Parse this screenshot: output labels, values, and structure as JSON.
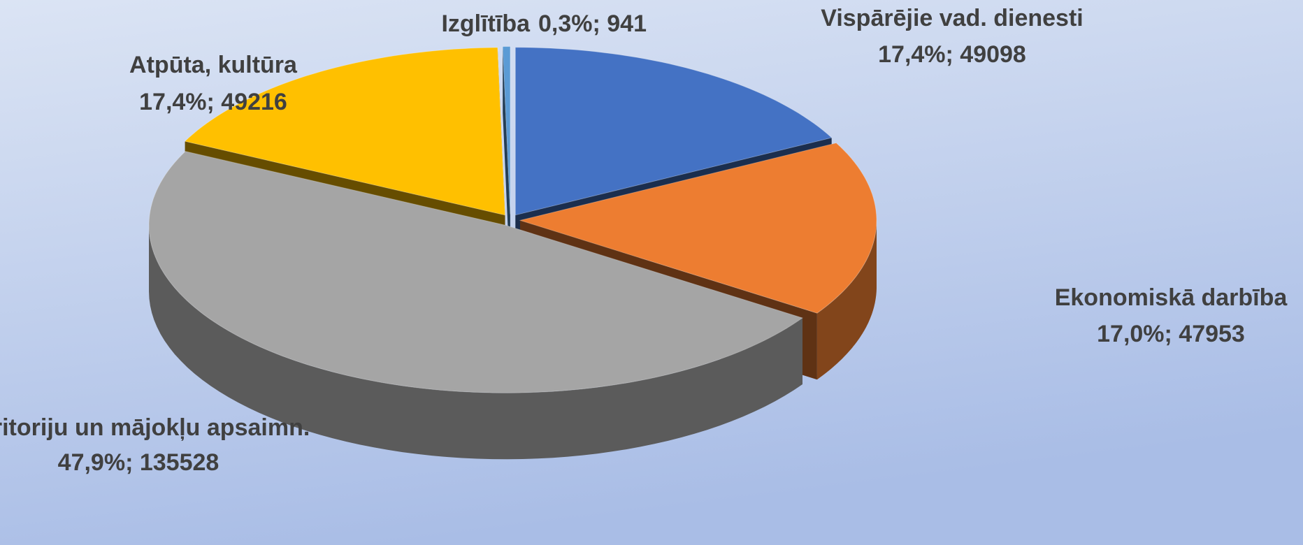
{
  "chart_data": {
    "type": "pie3d",
    "categories": [
      "Vispārējie vad. dienesti",
      "Ekonomiskā darbība",
      "Teritoriju un mājokļu apsaimn.",
      "Atpūta, kultūra",
      "Izglītība"
    ],
    "values": [
      49098,
      47953,
      135528,
      49216,
      941
    ],
    "value_labels": [
      "17,4%; 49098",
      "17,0%; 47953",
      "47,9%; 135528",
      "17,4%; 49216",
      "0,3%; 941"
    ],
    "colors": [
      "#4472c4",
      "#ed7d31",
      "#a5a5a5",
      "#ffc000",
      "#5b9bd5"
    ]
  }
}
